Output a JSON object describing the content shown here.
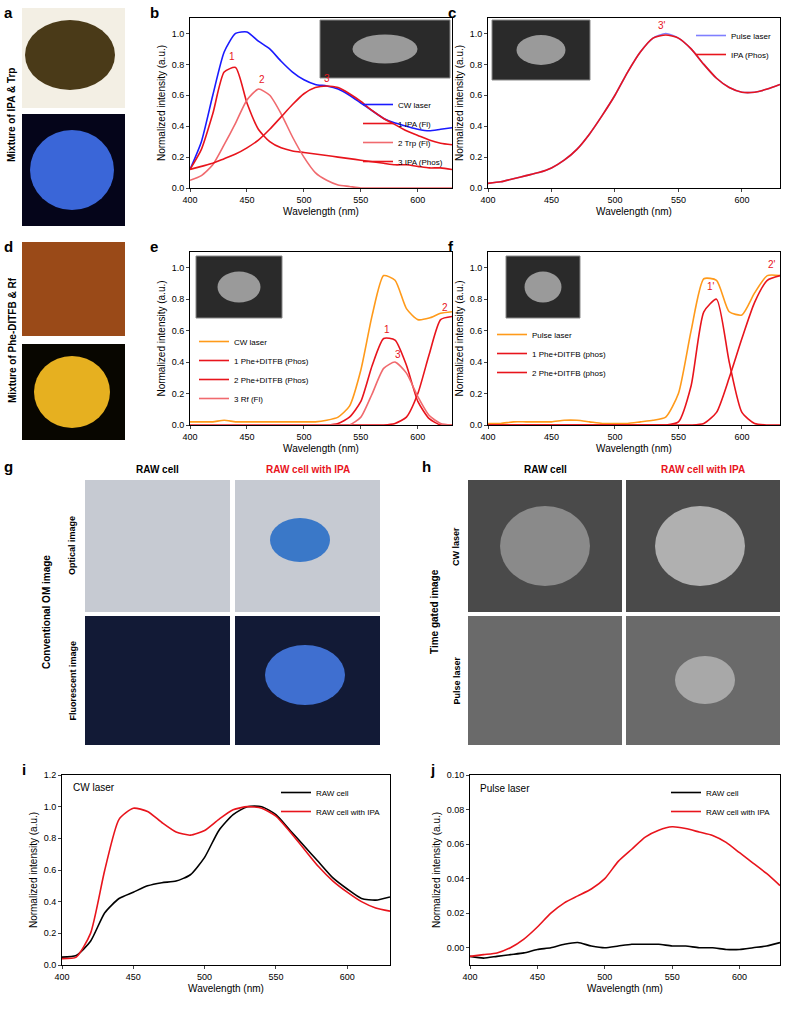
{
  "image_panels": [
    {
      "panel": "a",
      "label": "Mixture of IPA & Trp"
    },
    {
      "panel": "d",
      "label": "Mixture of Phe-DITFB & Rf"
    },
    {
      "panel": "g",
      "label": "Conventional OM image",
      "columns": [
        "RAW cell",
        "RAW cell with IPA"
      ],
      "rows": [
        "Optical image",
        "Fluorescent image"
      ]
    },
    {
      "panel": "h",
      "label": "Time gated image",
      "columns": [
        "RAW cell",
        "RAW cell with IPA"
      ],
      "rows": [
        "CW laser",
        "Pulse laser"
      ]
    }
  ],
  "chart_data": [
    {
      "panel": "b",
      "type": "line",
      "x_label": "Wavelength (nm)",
      "y_label": "Normalized intensity (a.u.)",
      "x": [
        400,
        410,
        420,
        430,
        440,
        450,
        460,
        470,
        480,
        490,
        500,
        510,
        520,
        530,
        540,
        550,
        560,
        570,
        580,
        590,
        600,
        610,
        620,
        630
      ],
      "xlim": [
        400,
        630
      ],
      "xticks": [
        400,
        450,
        500,
        550,
        600
      ],
      "ylim": [
        0,
        1.1
      ],
      "yticks": [
        {
          "value": 0,
          "label": "0.0"
        },
        0.2,
        0.4,
        0.6,
        0.8,
        {
          "value": 1,
          "label": "1.0"
        }
      ],
      "grid": false,
      "legend": "lower right",
      "series": [
        {
          "name": "CW laser",
          "color": "#1a1aff",
          "values": [
            0.12,
            0.3,
            0.6,
            0.88,
            1.0,
            1.01,
            0.95,
            0.9,
            0.82,
            0.75,
            0.7,
            0.67,
            0.66,
            0.64,
            0.6,
            0.55,
            0.5,
            0.45,
            0.42,
            0.4,
            0.38,
            0.37,
            0.38,
            0.39
          ]
        },
        {
          "name": "1 IPA (Fl)",
          "color": "#e8141c",
          "values": [
            0.12,
            0.25,
            0.48,
            0.75,
            0.78,
            0.55,
            0.38,
            0.3,
            0.26,
            0.24,
            0.23,
            0.22,
            0.21,
            0.2,
            0.19,
            0.18,
            0.17,
            0.16,
            0.15,
            0.15,
            0.14,
            0.13,
            0.13,
            0.12
          ]
        },
        {
          "name": "2 Trp (Fl)",
          "color": "#f06a6e",
          "values": [
            0.05,
            0.08,
            0.15,
            0.28,
            0.42,
            0.57,
            0.64,
            0.6,
            0.48,
            0.33,
            0.2,
            0.1,
            0.05,
            0.02,
            0.01,
            0,
            0,
            0,
            0,
            0,
            0,
            0,
            0,
            0
          ]
        },
        {
          "name": "3 IPA (Phos)",
          "color": "#e8141c",
          "values": [
            0.12,
            0.14,
            0.16,
            0.19,
            0.22,
            0.26,
            0.31,
            0.38,
            0.46,
            0.54,
            0.61,
            0.65,
            0.66,
            0.65,
            0.61,
            0.56,
            0.5,
            0.45,
            0.41,
            0.37,
            0.34,
            0.31,
            0.29,
            0.28
          ]
        }
      ],
      "annotations": [
        {
          "text": "1",
          "x": 437,
          "y": 0.85,
          "color": "#e8141c"
        },
        {
          "text": "2",
          "x": 463,
          "y": 0.7,
          "color": "#e8141c"
        },
        {
          "text": "3",
          "x": 520,
          "y": 0.71,
          "color": "#e8141c"
        }
      ]
    },
    {
      "panel": "c",
      "type": "line",
      "x_label": "Wavelength (nm)",
      "y_label": "Normalized intensity (a.u.)",
      "x": [
        400,
        410,
        420,
        430,
        440,
        450,
        460,
        470,
        480,
        490,
        500,
        510,
        520,
        530,
        540,
        550,
        560,
        570,
        580,
        590,
        600,
        610,
        620,
        630
      ],
      "xlim": [
        400,
        630
      ],
      "xticks": [
        400,
        450,
        500,
        550,
        600
      ],
      "ylim": [
        0,
        1.1
      ],
      "yticks": [
        {
          "value": 0,
          "label": "0.0"
        },
        0.2,
        0.4,
        0.6,
        0.8,
        {
          "value": 1,
          "label": "1.0"
        }
      ],
      "grid": false,
      "legend": "upper right",
      "series": [
        {
          "name": "Pulse laser",
          "color": "#7f7fff",
          "values": [
            0.03,
            0.04,
            0.06,
            0.08,
            0.1,
            0.13,
            0.18,
            0.25,
            0.35,
            0.47,
            0.6,
            0.75,
            0.88,
            0.97,
            1.0,
            0.97,
            0.9,
            0.8,
            0.71,
            0.65,
            0.62,
            0.62,
            0.64,
            0.67
          ]
        },
        {
          "name": "IPA (Phos)",
          "color": "#e8141c",
          "values": [
            0.03,
            0.04,
            0.06,
            0.08,
            0.1,
            0.13,
            0.18,
            0.25,
            0.35,
            0.47,
            0.6,
            0.75,
            0.88,
            0.97,
            0.99,
            0.97,
            0.9,
            0.8,
            0.71,
            0.65,
            0.62,
            0.62,
            0.64,
            0.67
          ]
        }
      ],
      "annotations": [
        {
          "text": "3'",
          "x": 537,
          "y": 1.05,
          "color": "#e8141c"
        }
      ]
    },
    {
      "panel": "e",
      "type": "line",
      "x_label": "Wavelength (nm)",
      "y_label": "Normalized intensity (a.u.)",
      "x": [
        400,
        410,
        420,
        430,
        440,
        450,
        460,
        470,
        480,
        490,
        500,
        510,
        520,
        530,
        540,
        550,
        560,
        570,
        580,
        590,
        600,
        610,
        620,
        630
      ],
      "xlim": [
        400,
        630
      ],
      "xticks": [
        400,
        450,
        500,
        550,
        600
      ],
      "ylim": [
        0,
        1.1
      ],
      "yticks": [
        {
          "value": 0,
          "label": "0.0"
        },
        0.2,
        0.4,
        0.6,
        0.8,
        {
          "value": 1,
          "label": "1.0"
        }
      ],
      "grid": false,
      "legend": "lower left",
      "series": [
        {
          "name": "CW laser",
          "color": "#ff9a1a",
          "values": [
            0.02,
            0.02,
            0.02,
            0.03,
            0.02,
            0.02,
            0.02,
            0.02,
            0.02,
            0.02,
            0.02,
            0.02,
            0.03,
            0.05,
            0.12,
            0.35,
            0.7,
            0.95,
            0.92,
            0.74,
            0.67,
            0.68,
            0.71,
            0.72
          ]
        },
        {
          "name": "1 Phe+DITFB (Phos)",
          "color": "#e8141c",
          "values": [
            0,
            0,
            0,
            0,
            0,
            0,
            0,
            0,
            0,
            0,
            0,
            0,
            0,
            0.01,
            0.05,
            0.15,
            0.38,
            0.55,
            0.54,
            0.38,
            0.15,
            0.04,
            0,
            0
          ]
        },
        {
          "name": "2 Phe+DITFB (Phos)",
          "color": "#e8141c",
          "values": [
            0,
            0,
            0,
            0,
            0,
            0,
            0,
            0,
            0,
            0,
            0,
            0,
            0,
            0,
            0,
            0,
            0,
            0,
            0.01,
            0.05,
            0.2,
            0.45,
            0.67,
            0.69
          ]
        },
        {
          "name": "3 Rf (Fl)",
          "color": "#f06a6e",
          "values": [
            0,
            0,
            0,
            0,
            0,
            0,
            0,
            0,
            0,
            0,
            0,
            0,
            0,
            0,
            0,
            0.05,
            0.2,
            0.36,
            0.4,
            0.33,
            0.18,
            0.06,
            0.01,
            0
          ]
        }
      ],
      "annotations": [
        {
          "text": "1",
          "x": 573,
          "y": 0.61,
          "color": "#e8141c"
        },
        {
          "text": "2",
          "x": 624,
          "y": 0.75,
          "color": "#e8141c"
        },
        {
          "text": "3",
          "x": 583,
          "y": 0.45,
          "color": "#e8141c"
        }
      ]
    },
    {
      "panel": "f",
      "type": "line",
      "x_label": "Wavelength (nm)",
      "y_label": "Normalized intensity (a.u.)",
      "x": [
        400,
        410,
        420,
        430,
        440,
        450,
        460,
        470,
        480,
        490,
        500,
        510,
        520,
        530,
        540,
        550,
        560,
        570,
        580,
        590,
        600,
        610,
        620,
        630
      ],
      "xlim": [
        400,
        630
      ],
      "xticks": [
        400,
        450,
        500,
        550,
        600
      ],
      "ylim": [
        0,
        1.1
      ],
      "yticks": [
        {
          "value": 0,
          "label": "0.0"
        },
        0.2,
        0.4,
        0.6,
        0.8,
        {
          "value": 1,
          "label": "1.0"
        }
      ],
      "grid": false,
      "legend": "center left",
      "series": [
        {
          "name": "Pulse laser",
          "color": "#ff9a1a",
          "values": [
            0.01,
            0.01,
            0.02,
            0.02,
            0.02,
            0.02,
            0.03,
            0.03,
            0.02,
            0.01,
            0.01,
            0.01,
            0.02,
            0.03,
            0.05,
            0.2,
            0.6,
            0.93,
            0.92,
            0.72,
            0.7,
            0.84,
            0.95,
            0.95
          ]
        },
        {
          "name": "1 Phe+DITFB (phos)",
          "color": "#e8141c",
          "values": [
            0,
            0,
            0,
            0,
            0,
            0,
            0,
            0,
            0,
            0,
            0,
            0,
            0,
            0,
            0,
            0.02,
            0.25,
            0.72,
            0.8,
            0.4,
            0.08,
            0.01,
            0,
            0
          ]
        },
        {
          "name": "2 Phe+DITFB (phos)",
          "color": "#e8141c",
          "values": [
            0,
            0,
            0,
            0,
            0,
            0,
            0,
            0,
            0,
            0,
            0,
            0,
            0,
            0,
            0,
            0,
            0,
            0.01,
            0.08,
            0.3,
            0.55,
            0.78,
            0.92,
            0.95
          ]
        }
      ],
      "annotations": [
        {
          "text": "1'",
          "x": 576,
          "y": 0.88,
          "color": "#e8141c"
        },
        {
          "text": "2'",
          "x": 624,
          "y": 1.02,
          "color": "#e8141c"
        }
      ]
    },
    {
      "panel": "i",
      "type": "line",
      "x_label": "Wavelength (nm)",
      "y_label": "Normalized intensity (a.u.)",
      "x": [
        400,
        410,
        420,
        430,
        440,
        450,
        460,
        470,
        480,
        490,
        500,
        510,
        520,
        530,
        540,
        550,
        560,
        570,
        580,
        590,
        600,
        610,
        620,
        630
      ],
      "xlim": [
        400,
        630
      ],
      "xticks": [
        400,
        450,
        500,
        550,
        600
      ],
      "ylim": [
        0,
        1.2
      ],
      "yticks": [
        {
          "value": 0,
          "label": "0.0"
        },
        0.2,
        0.4,
        0.6,
        0.8,
        {
          "value": 1,
          "label": "1.0"
        },
        1.2
      ],
      "grid": false,
      "legend": "upper right",
      "series": [
        {
          "name": "RAW cell",
          "color": "#000000",
          "values": [
            0.05,
            0.06,
            0.15,
            0.33,
            0.42,
            0.46,
            0.5,
            0.52,
            0.53,
            0.57,
            0.68,
            0.85,
            0.95,
            1.0,
            1.0,
            0.95,
            0.85,
            0.75,
            0.65,
            0.55,
            0.48,
            0.42,
            0.41,
            0.43
          ]
        },
        {
          "name": "RAW cell with IPA",
          "color": "#e8141c",
          "values": [
            0.04,
            0.05,
            0.2,
            0.6,
            0.92,
            0.99,
            0.97,
            0.9,
            0.84,
            0.82,
            0.85,
            0.92,
            0.98,
            1.0,
            0.99,
            0.94,
            0.84,
            0.73,
            0.62,
            0.53,
            0.46,
            0.4,
            0.36,
            0.34
          ]
        }
      ],
      "annotations": [
        {
          "text": "CW laser",
          "x": 406,
          "y": 1.12,
          "color": "#000000"
        }
      ]
    },
    {
      "panel": "j",
      "type": "line",
      "x_label": "Wavelength (nm)",
      "y_label": "Normalized intensity (a.u.)",
      "x": [
        400,
        410,
        420,
        430,
        440,
        450,
        460,
        470,
        480,
        490,
        500,
        510,
        520,
        530,
        540,
        550,
        560,
        570,
        580,
        590,
        600,
        610,
        620,
        630
      ],
      "xlim": [
        400,
        630
      ],
      "xticks": [
        400,
        450,
        500,
        550,
        600
      ],
      "ylim": [
        -0.01,
        0.1
      ],
      "yticks": [
        {
          "value": 0,
          "label": "0.00"
        },
        0.02,
        0.04,
        0.06,
        0.08,
        {
          "value": 0.1,
          "label": "0.10"
        }
      ],
      "grid": false,
      "legend": "upper right",
      "series": [
        {
          "name": "RAW cell",
          "color": "#000000",
          "values": [
            -0.005,
            -0.006,
            -0.005,
            -0.004,
            -0.003,
            -0.001,
            0.0,
            0.002,
            0.003,
            0.001,
            0.0,
            0.001,
            0.002,
            0.002,
            0.002,
            0.001,
            0.001,
            0.0,
            0.0,
            -0.001,
            -0.001,
            0.0,
            0.001,
            0.003
          ]
        },
        {
          "name": "RAW cell with IPA",
          "color": "#e8141c",
          "values": [
            -0.005,
            -0.004,
            -0.003,
            0.0,
            0.005,
            0.012,
            0.02,
            0.026,
            0.03,
            0.034,
            0.04,
            0.05,
            0.057,
            0.064,
            0.068,
            0.07,
            0.069,
            0.067,
            0.065,
            0.061,
            0.055,
            0.049,
            0.043,
            0.036
          ]
        }
      ],
      "annotations": [
        {
          "text": "Pulse laser",
          "x": 406,
          "y": 0.092,
          "color": "#000000"
        }
      ]
    }
  ]
}
